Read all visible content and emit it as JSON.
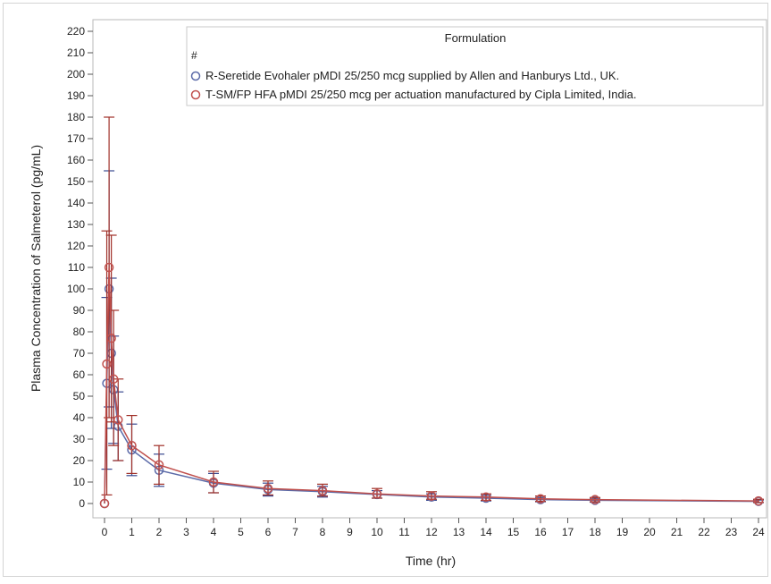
{
  "chart_data": {
    "type": "line",
    "title": "",
    "xlabel": "Time (hr)",
    "ylabel": "Plasma Concentration of Salmeterol (pg/mL)",
    "xlim": [
      0,
      24
    ],
    "ylim": [
      0,
      220
    ],
    "x_ticks": [
      0,
      1,
      2,
      3,
      4,
      5,
      6,
      7,
      8,
      9,
      10,
      11,
      12,
      13,
      14,
      15,
      16,
      17,
      18,
      19,
      20,
      21,
      22,
      23,
      24
    ],
    "y_ticks": [
      0,
      10,
      20,
      30,
      40,
      50,
      60,
      70,
      80,
      90,
      100,
      110,
      120,
      130,
      140,
      150,
      160,
      170,
      180,
      190,
      200,
      210,
      220
    ],
    "grid": false,
    "error_bars": true,
    "legend": {
      "title": "Formulation",
      "placement": "top-right",
      "marker_row": "#",
      "marker_color": "#9a9a9a"
    },
    "series": [
      {
        "name": "R-Seretide Evohaler pMDI 25/250 mcg supplied by Allen and Hanburys Ltd., UK.",
        "color": "#5b6aa8",
        "bar_color": "#3a4a90",
        "x": [
          0,
          0.083,
          0.167,
          0.25,
          0.333,
          0.5,
          1,
          2,
          4,
          6,
          8,
          10,
          12,
          14,
          16,
          18,
          24
        ],
        "y": [
          0,
          56,
          100,
          70,
          53,
          36,
          25,
          15.5,
          9.5,
          6.5,
          5.5,
          4.2,
          3.0,
          2.5,
          1.8,
          1.5,
          1.0
        ],
        "err_low": [
          0,
          16,
          45,
          35,
          28,
          20,
          13,
          8,
          5,
          3.5,
          3,
          2.5,
          1.5,
          1.2,
          0.8,
          0.6,
          0.4
        ],
        "err_high": [
          0,
          96,
          155,
          105,
          78,
          52,
          37,
          23,
          14,
          9.5,
          8,
          6,
          4.5,
          3.8,
          2.8,
          2.4,
          1.6
        ]
      },
      {
        "name": "T-SM/FP HFA pMDI 25/250 mcg per actuation manufactured by Cipla Limited, India.",
        "color": "#c0504d",
        "bar_color": "#a03028",
        "x": [
          0,
          0.083,
          0.167,
          0.25,
          0.333,
          0.5,
          1,
          2,
          4,
          6,
          8,
          10,
          12,
          14,
          16,
          18,
          24
        ],
        "y": [
          0,
          65,
          110,
          77,
          58,
          39,
          27,
          18,
          10,
          7,
          6,
          4.5,
          3.5,
          3.0,
          2.2,
          1.8,
          1.2
        ],
        "err_low": [
          0,
          4,
          40,
          38,
          27,
          20,
          14,
          9,
          5,
          4,
          3.5,
          2.5,
          2.0,
          1.5,
          1.0,
          0.8,
          0.5
        ],
        "err_high": [
          0,
          127,
          180,
          125,
          90,
          58,
          41,
          27,
          15,
          10.5,
          9,
          7,
          5.5,
          4.5,
          3.5,
          2.8,
          2.0
        ]
      }
    ]
  }
}
